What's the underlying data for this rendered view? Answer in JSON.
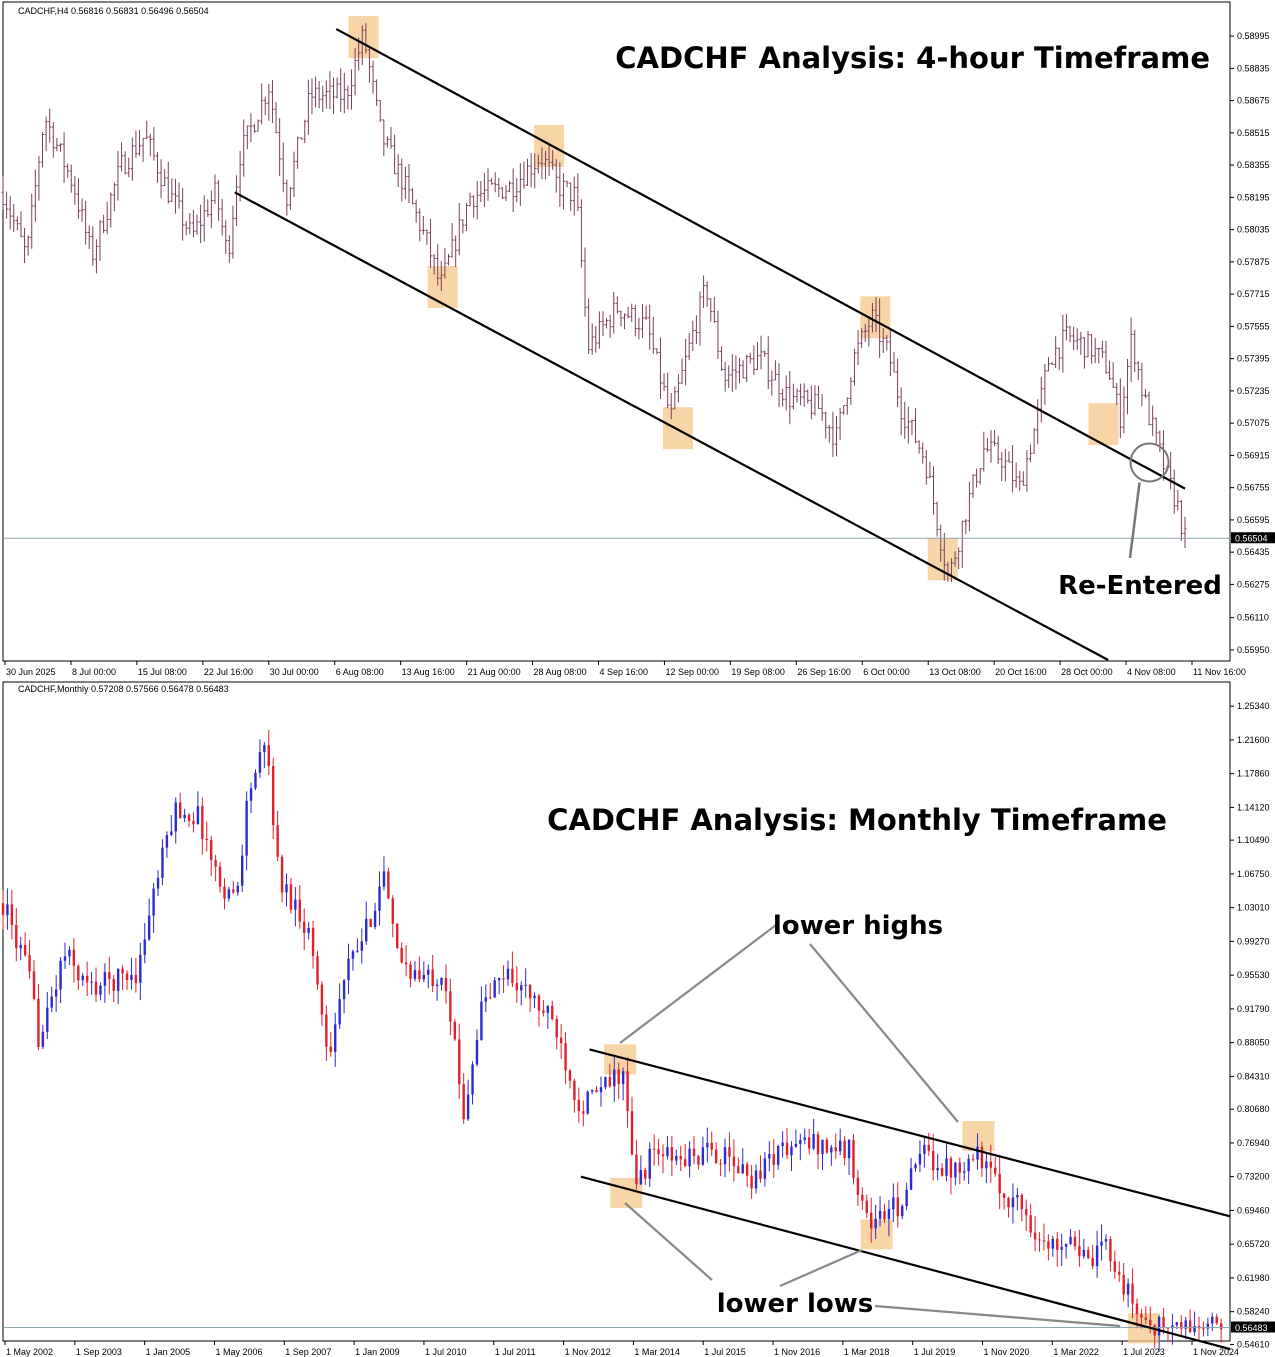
{
  "colors": {
    "bull_bar": "#2b2bd0",
    "bear_bar": "#e0202b",
    "h4_bar": "#7a3f5c",
    "trendline": "#000000",
    "highlight": "#f5c78a",
    "price_tag": "#000000",
    "current_line": "#8fa5b0",
    "annotation_line": "#888888"
  },
  "chart_data": [
    {
      "type": "candlestick",
      "symbol_header": "CADCHF,H4  0.56816 0.56831 0.56496 0.56504",
      "title": "CADCHF Analysis: 4-hour Timeframe",
      "current_price": "0.56504",
      "ylim": [
        0.559,
        0.5905
      ],
      "y_ticks": [
        "0.58995",
        "0.58835",
        "0.58675",
        "0.58515",
        "0.58355",
        "0.58195",
        "0.58035",
        "0.57875",
        "0.57715",
        "0.57555",
        "0.57395",
        "0.57235",
        "0.57075",
        "0.56915",
        "0.56755",
        "0.56595",
        "0.56435",
        "0.56275",
        "0.56110",
        "0.55950"
      ],
      "x_ticks": [
        "30 Jun 2025",
        "8 Jul 00:00",
        "15 Jul 08:00",
        "22 Jul 16:00",
        "30 Jul 00:00",
        "6 Aug 08:00",
        "13 Aug 16:00",
        "21 Aug 00:00",
        "28 Aug 08:00",
        "4 Sep 16:00",
        "12 Sep 00:00",
        "19 Sep 08:00",
        "26 Sep 16:00",
        "6 Oct 00:00",
        "13 Oct 08:00",
        "20 Oct 16:00",
        "28 Oct 00:00",
        "4 Nov 08:00",
        "11 Nov 16:00"
      ],
      "path_points": [
        [
          0,
          0.5822
        ],
        [
          0.02,
          0.579
        ],
        [
          0.035,
          0.586
        ],
        [
          0.06,
          0.5825
        ],
        [
          0.075,
          0.579
        ],
        [
          0.1,
          0.5835
        ],
        [
          0.12,
          0.585
        ],
        [
          0.14,
          0.5822
        ],
        [
          0.16,
          0.58
        ],
        [
          0.18,
          0.5822
        ],
        [
          0.19,
          0.579
        ],
        [
          0.2,
          0.584
        ],
        [
          0.225,
          0.5875
        ],
        [
          0.24,
          0.582
        ],
        [
          0.26,
          0.587
        ],
        [
          0.29,
          0.587
        ],
        [
          0.305,
          0.59
        ],
        [
          0.32,
          0.585
        ],
        [
          0.34,
          0.5825
        ],
        [
          0.36,
          0.5795
        ],
        [
          0.37,
          0.5775
        ],
        [
          0.395,
          0.582
        ],
        [
          0.43,
          0.5825
        ],
        [
          0.455,
          0.584
        ],
        [
          0.47,
          0.5825
        ],
        [
          0.485,
          0.582
        ],
        [
          0.495,
          0.5745
        ],
        [
          0.52,
          0.5765
        ],
        [
          0.545,
          0.5755
        ],
        [
          0.565,
          0.571
        ],
        [
          0.585,
          0.5755
        ],
        [
          0.595,
          0.5775
        ],
        [
          0.61,
          0.573
        ],
        [
          0.64,
          0.574
        ],
        [
          0.665,
          0.572
        ],
        [
          0.69,
          0.5715
        ],
        [
          0.705,
          0.57
        ],
        [
          0.72,
          0.574
        ],
        [
          0.735,
          0.576
        ],
        [
          0.75,
          0.574
        ],
        [
          0.76,
          0.5715
        ],
        [
          0.78,
          0.569
        ],
        [
          0.79,
          0.566
        ],
        [
          0.8,
          0.563
        ],
        [
          0.815,
          0.5665
        ],
        [
          0.83,
          0.5695
        ],
        [
          0.845,
          0.569
        ],
        [
          0.86,
          0.5675
        ],
        [
          0.875,
          0.571
        ],
        [
          0.885,
          0.574
        ],
        [
          0.9,
          0.575
        ],
        [
          0.92,
          0.5745
        ],
        [
          0.935,
          0.5735
        ],
        [
          0.945,
          0.571
        ],
        [
          0.955,
          0.575
        ],
        [
          0.965,
          0.572
        ],
        [
          0.975,
          0.57
        ],
        [
          0.985,
          0.568
        ],
        [
          0.993,
          0.5668
        ],
        [
          1,
          0.565
        ]
      ],
      "num_bars": 330,
      "trendlines": [
        {
          "p1": [
            0.282,
            0.5903
          ],
          "p2": [
            1.0,
            0.5675
          ]
        },
        {
          "p1": [
            0.196,
            0.5822
          ],
          "p2": [
            0.935,
            0.559
          ]
        }
      ],
      "highlights": [
        [
          0.305,
          0.5899
        ],
        [
          0.372,
          0.5775
        ],
        [
          0.462,
          0.5845
        ],
        [
          0.571,
          0.5705
        ],
        [
          0.738,
          0.576
        ],
        [
          0.795,
          0.564
        ],
        [
          0.931,
          0.5707
        ]
      ],
      "circle": [
        0.97,
        0.5688
      ],
      "annotation": "Re-Entered"
    },
    {
      "type": "candlestick",
      "symbol_header": "CADCHF,Monthly  0.57208 0.57566 0.56478 0.56483",
      "title": "CADCHF Analysis: Monthly Timeframe",
      "current_price": "0.56483",
      "ylim": [
        0.551,
        1.258
      ],
      "y_ticks": [
        "1.25340",
        "1.21600",
        "1.17860",
        "1.14120",
        "1.10490",
        "1.06750",
        "1.03010",
        "0.99270",
        "0.95530",
        "0.91790",
        "0.88050",
        "0.84310",
        "0.80680",
        "0.76940",
        "0.73200",
        "0.69460",
        "0.65720",
        "0.61980",
        "0.58240",
        "0.54610"
      ],
      "x_ticks": [
        "1 May 2002",
        "1 Sep 2003",
        "1 Jan 2005",
        "1 May 2006",
        "1 Sep 2007",
        "1 Jan 2009",
        "1 Jul 2010",
        "1 Jul 2011",
        "1 Nov 2012",
        "1 Mar 2014",
        "1 Jul 2015",
        "1 Nov 2016",
        "1 Mar 2018",
        "1 Jul 2019",
        "1 Nov 2020",
        "1 Mar 2022",
        "1 Jul 2023",
        "1 Nov 2024"
      ],
      "path_points": [
        [
          0,
          1.035
        ],
        [
          0.02,
          0.96
        ],
        [
          0.03,
          0.88
        ],
        [
          0.05,
          0.98
        ],
        [
          0.07,
          0.94
        ],
        [
          0.09,
          0.95
        ],
        [
          0.11,
          0.96
        ],
        [
          0.12,
          1.03
        ],
        [
          0.14,
          1.14
        ],
        [
          0.16,
          1.13
        ],
        [
          0.175,
          1.06
        ],
        [
          0.19,
          1.04
        ],
        [
          0.2,
          1.16
        ],
        [
          0.215,
          1.21
        ],
        [
          0.225,
          1.06
        ],
        [
          0.24,
          1.03
        ],
        [
          0.25,
          1.0
        ],
        [
          0.265,
          0.87
        ],
        [
          0.28,
          0.96
        ],
        [
          0.295,
          1.0
        ],
        [
          0.31,
          1.07
        ],
        [
          0.32,
          0.98
        ],
        [
          0.34,
          0.95
        ],
        [
          0.36,
          0.96
        ],
        [
          0.375,
          0.8
        ],
        [
          0.39,
          0.92
        ],
        [
          0.41,
          0.96
        ],
        [
          0.43,
          0.93
        ],
        [
          0.45,
          0.9
        ],
        [
          0.47,
          0.81
        ],
        [
          0.49,
          0.83
        ],
        [
          0.505,
          0.85
        ],
        [
          0.515,
          0.72
        ],
        [
          0.53,
          0.76
        ],
        [
          0.55,
          0.75
        ],
        [
          0.58,
          0.76
        ],
        [
          0.61,
          0.73
        ],
        [
          0.63,
          0.76
        ],
        [
          0.66,
          0.77
        ],
        [
          0.69,
          0.76
        ],
        [
          0.705,
          0.68
        ],
        [
          0.73,
          0.7
        ],
        [
          0.75,
          0.76
        ],
        [
          0.77,
          0.74
        ],
        [
          0.795,
          0.76
        ],
        [
          0.81,
          0.72
        ],
        [
          0.83,
          0.7
        ],
        [
          0.85,
          0.65
        ],
        [
          0.87,
          0.67
        ],
        [
          0.885,
          0.63
        ],
        [
          0.9,
          0.66
        ],
        [
          0.91,
          0.62
        ],
        [
          0.925,
          0.58
        ],
        [
          0.94,
          0.565
        ]
      ],
      "num_bars": 278,
      "trendlines": [
        {
          "p1": [
            0.478,
            0.873
          ],
          "p2": [
            1.0,
            0.688
          ]
        },
        {
          "p1": [
            0.471,
            0.732
          ],
          "p2": [
            1.0,
            0.541
          ]
        }
      ],
      "highlights": [
        [
          0.503,
          0.862
        ],
        [
          0.508,
          0.714
        ],
        [
          0.712,
          0.668
        ],
        [
          0.795,
          0.777
        ],
        [
          0.93,
          0.564
        ]
      ],
      "annotations": [
        "lower highs",
        "lower lows"
      ]
    }
  ]
}
